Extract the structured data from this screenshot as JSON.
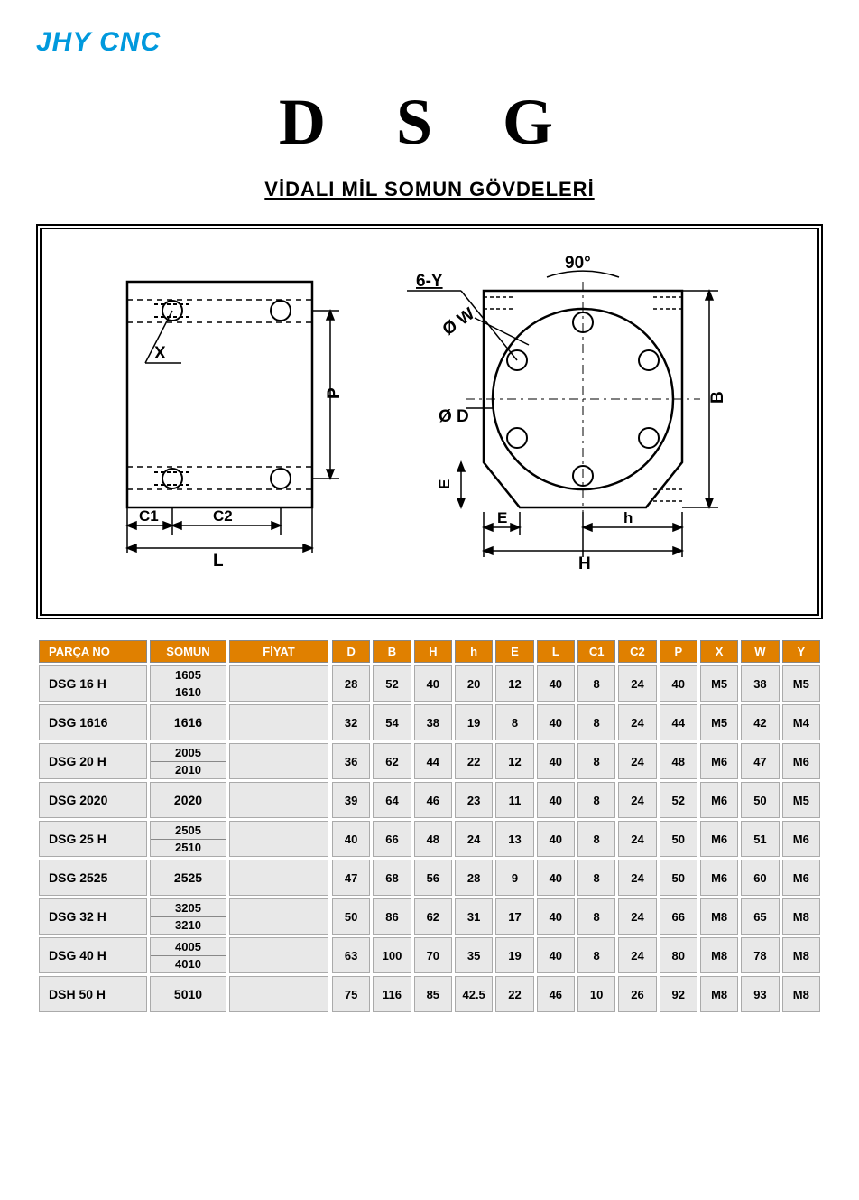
{
  "logo": "JHY CNC",
  "title": "D S G",
  "subtitle": "VİDALI MİL SOMUN GÖVDELERİ",
  "colors": {
    "header_bg": "#e08000",
    "header_fg": "#ffffff",
    "cell_bg": "#e8e8e8",
    "logo_color": "#0099dd"
  },
  "diagram_labels": {
    "x": "X",
    "p": "P",
    "c1": "C1",
    "c2": "C2",
    "l": "L",
    "angle": "90°",
    "sixY": "6-Y",
    "ow": "Ø W",
    "od": "Ø D",
    "e_side": "E",
    "e_bottom": "E",
    "h_small": "h",
    "h_big": "H",
    "b": "B"
  },
  "left_table": {
    "headers": [
      "PARÇA NO",
      "SOMUN",
      "FİYAT"
    ],
    "rows": [
      {
        "parca": "DSG 16 H",
        "somun": [
          "1605",
          "1610"
        ],
        "fiyat": ""
      },
      {
        "parca": "DSG  1616",
        "somun": [
          "1616"
        ],
        "fiyat": ""
      },
      {
        "parca": "DSG 20 H",
        "somun": [
          "2005",
          "2010"
        ],
        "fiyat": ""
      },
      {
        "parca": "DSG  2020",
        "somun": [
          "2020"
        ],
        "fiyat": ""
      },
      {
        "parca": "DSG 25 H",
        "somun": [
          "2505",
          "2510"
        ],
        "fiyat": ""
      },
      {
        "parca": "DSG  2525",
        "somun": [
          "2525"
        ],
        "fiyat": ""
      },
      {
        "parca": "DSG 32 H",
        "somun": [
          "3205",
          "3210"
        ],
        "fiyat": ""
      },
      {
        "parca": "DSG 40 H",
        "somun": [
          "4005",
          "4010"
        ],
        "fiyat": ""
      },
      {
        "parca": "DSH 50 H",
        "somun": [
          "5010"
        ],
        "fiyat": ""
      }
    ]
  },
  "right_table": {
    "headers": [
      "D",
      "B",
      "H",
      "h",
      "E",
      "L",
      "C1",
      "C2",
      "P",
      "X",
      "W",
      "Y"
    ],
    "rows": [
      [
        "28",
        "52",
        "40",
        "20",
        "12",
        "40",
        "8",
        "24",
        "40",
        "M5",
        "38",
        "M5"
      ],
      [
        "32",
        "54",
        "38",
        "19",
        "8",
        "40",
        "8",
        "24",
        "44",
        "M5",
        "42",
        "M4"
      ],
      [
        "36",
        "62",
        "44",
        "22",
        "12",
        "40",
        "8",
        "24",
        "48",
        "M6",
        "47",
        "M6"
      ],
      [
        "39",
        "64",
        "46",
        "23",
        "11",
        "40",
        "8",
        "24",
        "52",
        "M6",
        "50",
        "M5"
      ],
      [
        "40",
        "66",
        "48",
        "24",
        "13",
        "40",
        "8",
        "24",
        "50",
        "M6",
        "51",
        "M6"
      ],
      [
        "47",
        "68",
        "56",
        "28",
        "9",
        "40",
        "8",
        "24",
        "50",
        "M6",
        "60",
        "M6"
      ],
      [
        "50",
        "86",
        "62",
        "31",
        "17",
        "40",
        "8",
        "24",
        "66",
        "M8",
        "65",
        "M8"
      ],
      [
        "63",
        "100",
        "70",
        "35",
        "19",
        "40",
        "8",
        "24",
        "80",
        "M8",
        "78",
        "M8"
      ],
      [
        "75",
        "116",
        "85",
        "42.5",
        "22",
        "46",
        "10",
        "26",
        "92",
        "M8",
        "93",
        "M8"
      ]
    ]
  }
}
